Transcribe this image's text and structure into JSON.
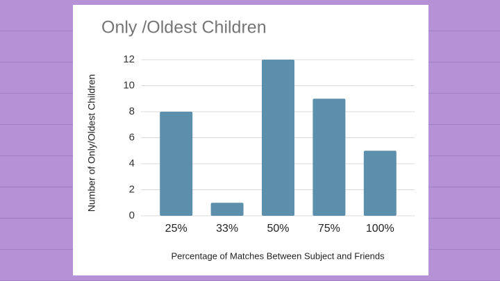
{
  "chart_data": {
    "type": "bar",
    "title": "Only /Oldest Children",
    "y_label": "Number of Only/Oldest Children",
    "x_label": "Percentage of Matches Between Subject and Friends",
    "categories": [
      "25%",
      "33%",
      "50%",
      "75%",
      "100%"
    ],
    "values": [
      8,
      1,
      12,
      9,
      5
    ],
    "color": "#5b8fac",
    "ylim": [
      0,
      12
    ],
    "yticks": [
      0,
      2,
      4,
      6,
      8,
      10,
      12
    ],
    "grid": true
  }
}
